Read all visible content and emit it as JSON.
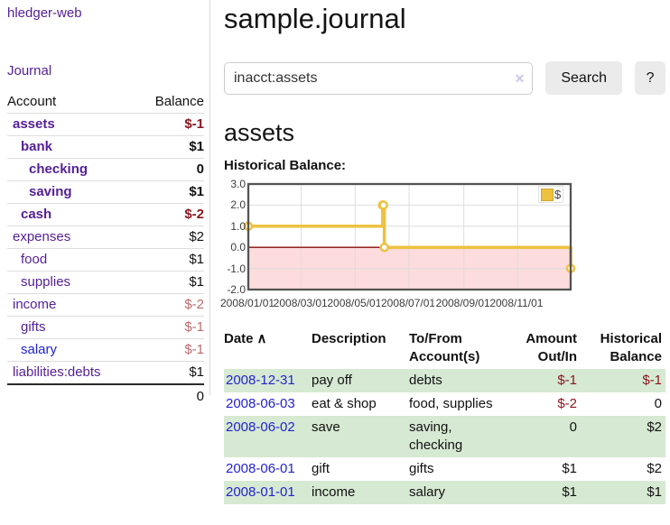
{
  "colors": {
    "link_purple": "#541f96",
    "link_blue": "#2323d2",
    "negative_strong": "#8c1720",
    "negative_dim": "#bb6a6a",
    "row_green": "#d6e9d2",
    "button_bg": "#ebebeb",
    "chart_series_yellow": "#edc240",
    "chart_border": "#545454",
    "chart_grid": "#dddddd",
    "chart_zero_line": "#8a0b0b",
    "chart_negative_region": "#fcdcdc"
  },
  "sidebar": {
    "brand": "hledger-web",
    "journal_link": "Journal",
    "accounts_table": {
      "headers": [
        "Account",
        "Balance"
      ],
      "rows": [
        {
          "name": "assets",
          "level": 1,
          "bold": true,
          "balance": "$-1",
          "balance_style": "negstrong",
          "name_color": "purple"
        },
        {
          "name": "bank",
          "level": 2,
          "bold": true,
          "balance": "$1",
          "balance_style": "normal",
          "name_color": "purple"
        },
        {
          "name": "checking",
          "level": 3,
          "bold": true,
          "balance": "0",
          "balance_style": "normal",
          "name_color": "purple"
        },
        {
          "name": "saving",
          "level": 3,
          "bold": true,
          "balance": "$1",
          "balance_style": "normal",
          "name_color": "purple"
        },
        {
          "name": "cash",
          "level": 2,
          "bold": true,
          "balance": "$-2",
          "balance_style": "negstrong",
          "name_color": "purple"
        },
        {
          "name": "expenses",
          "level": 1,
          "bold": false,
          "balance": "$2",
          "balance_style": "normal",
          "name_color": "purple"
        },
        {
          "name": "food",
          "level": 2,
          "bold": false,
          "balance": "$1",
          "balance_style": "normal",
          "name_color": "purple"
        },
        {
          "name": "supplies",
          "level": 2,
          "bold": false,
          "balance": "$1",
          "balance_style": "normal",
          "name_color": "purple"
        },
        {
          "name": "income",
          "level": 1,
          "bold": false,
          "balance": "$-2",
          "balance_style": "negdim",
          "name_color": "purple"
        },
        {
          "name": "gifts",
          "level": 2,
          "bold": false,
          "balance": "$-1",
          "balance_style": "negdim",
          "name_color": "purple"
        },
        {
          "name": "salary",
          "level": 2,
          "bold": false,
          "balance": "$-1",
          "balance_style": "negdim",
          "name_color": "blue"
        },
        {
          "name": "liabilities:debts",
          "level": 1,
          "bold": false,
          "balance": "$1",
          "balance_style": "normal",
          "name_color": "purple"
        }
      ],
      "total": "0"
    }
  },
  "main": {
    "title": "sample.journal",
    "search": {
      "value": "inacct:assets",
      "clear_icon": "✕",
      "button_label": "Search",
      "help_label": "?"
    },
    "account_heading": "assets",
    "section_label": "Historical Balance:",
    "register_table": {
      "headers": [
        "Date",
        "Description",
        "To/From Account(s)",
        "Amount Out/In",
        "Historical Balance"
      ],
      "sort_arrow": "∧",
      "rows": [
        {
          "date": "2008-12-31",
          "description": "pay off",
          "accounts": "debts",
          "amount": "$-1",
          "balance": "$-1"
        },
        {
          "date": "2008-06-03",
          "description": "eat & shop",
          "accounts": "food, supplies",
          "amount": "$-2",
          "balance": "0"
        },
        {
          "date": "2008-06-02",
          "description": "save",
          "accounts": "saving, checking",
          "amount": "0",
          "balance": "$2"
        },
        {
          "date": "2008-06-01",
          "description": "gift",
          "accounts": "gifts",
          "amount": "$1",
          "balance": "$2"
        },
        {
          "date": "2008-01-01",
          "description": "income",
          "accounts": "salary",
          "amount": "$1",
          "balance": "$1"
        }
      ]
    }
  },
  "chart_data": {
    "type": "line",
    "title": "Historical Balance:",
    "steps": true,
    "series": [
      {
        "name": "$",
        "color": "#edc240",
        "points": [
          [
            "2008-01-01",
            1
          ],
          [
            "2008-06-01",
            2
          ],
          [
            "2008-06-02",
            2
          ],
          [
            "2008-06-03",
            0
          ],
          [
            "2008-12-31",
            -1
          ]
        ]
      }
    ],
    "xrange": [
      "2008-01-01",
      "2008-12-31"
    ],
    "ylim": [
      -2,
      3
    ],
    "yticks": [
      "3.0",
      "2.0",
      "1.0",
      "0.0",
      "-1.0",
      "-2.0"
    ],
    "xticks": [
      "2008/01/01",
      "2008/03/01",
      "2008/05/01",
      "2008/07/01",
      "2008/09/01",
      "2008/11/01"
    ],
    "legend": {
      "label": "$",
      "position": "top-right"
    },
    "grid": true,
    "zero_line_color": "#8a0b0b",
    "negative_region_color": "#fcdcdc"
  }
}
